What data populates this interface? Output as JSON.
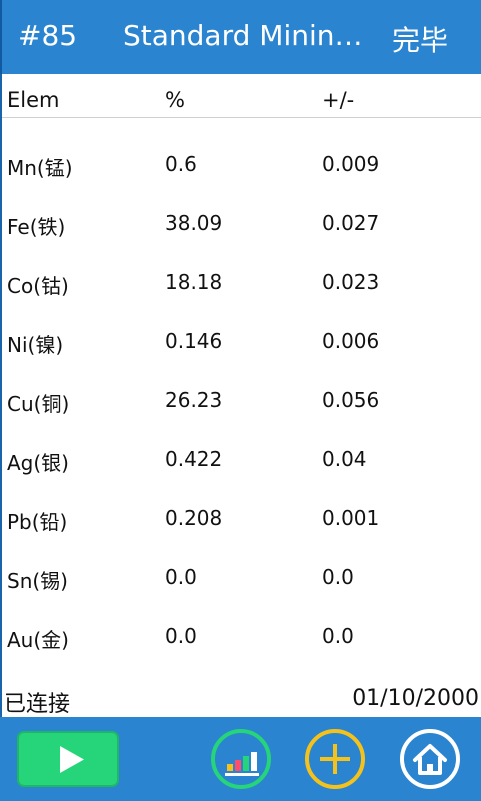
{
  "header": {
    "number": "#85",
    "title": "Standard Minin…",
    "done_label": "完毕"
  },
  "table": {
    "columns": [
      "Elem",
      "%",
      "+/-"
    ],
    "rows": [
      {
        "elem": "Mn(锰)",
        "pct": "0.6",
        "err": "0.009"
      },
      {
        "elem": "Fe(铁)",
        "pct": "38.09",
        "err": "0.027"
      },
      {
        "elem": "Co(钴)",
        "pct": "18.18",
        "err": "0.023"
      },
      {
        "elem": "Ni(镍)",
        "pct": "0.146",
        "err": "0.006"
      },
      {
        "elem": "Cu(铜)",
        "pct": "26.23",
        "err": "0.056"
      },
      {
        "elem": "Ag(银)",
        "pct": "0.422",
        "err": "0.04"
      },
      {
        "elem": "Pb(铅)",
        "pct": "0.208",
        "err": "0.001"
      },
      {
        "elem": "Sn(锡)",
        "pct": "0.0",
        "err": "0.0"
      },
      {
        "elem": "Au(金)",
        "pct": "0.0",
        "err": "0.0"
      }
    ]
  },
  "status": {
    "connection": "已连接",
    "date": "01/10/2000"
  },
  "toolbar": {
    "buttons": [
      "play-icon",
      "bar-chart-icon",
      "plus-icon",
      "home-icon"
    ],
    "colors": {
      "bar": "#2a84d0",
      "play": "#26d479",
      "chart_ring": "#26d479",
      "plus_ring": "#f4c21b",
      "home_ring": "#ffffff"
    }
  }
}
